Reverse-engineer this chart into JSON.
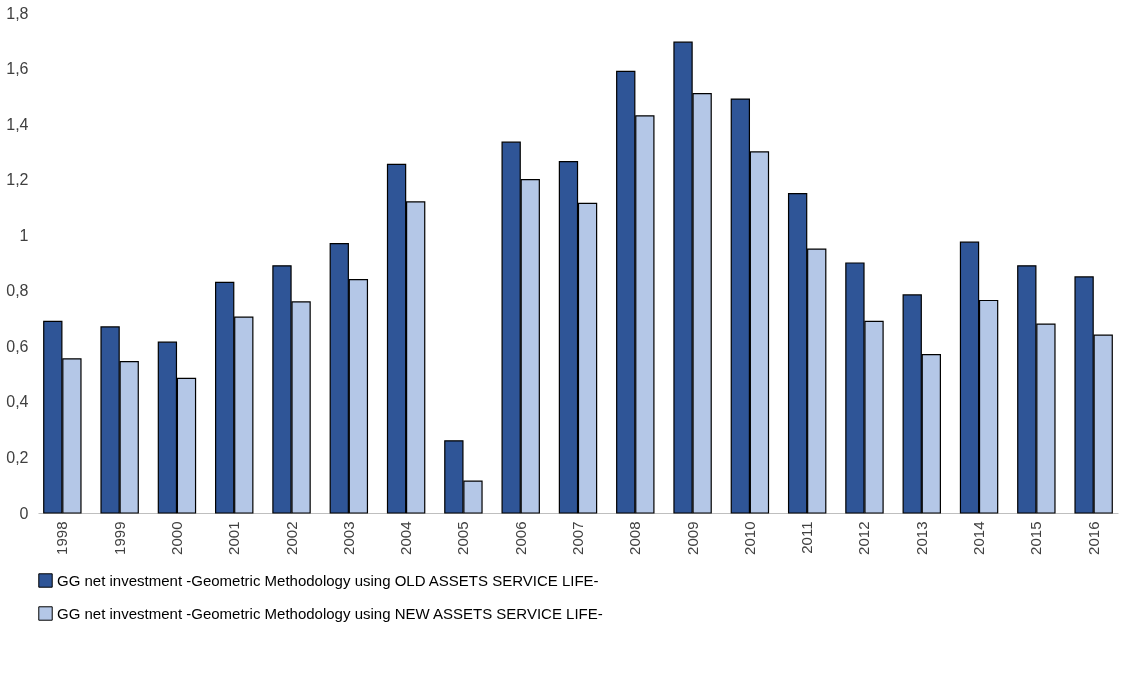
{
  "chart_data": {
    "type": "bar",
    "categories": [
      "1998",
      "1999",
      "2000",
      "2001",
      "2002",
      "2003",
      "2004",
      "2005",
      "2006",
      "2007",
      "2008",
      "2009",
      "2010",
      "2011",
      "2012",
      "2013",
      "2014",
      "2015",
      "2016"
    ],
    "series": [
      {
        "name": "GG net investment -Geometric Methodology using OLD ASSETS SERVICE LIFE-",
        "color": "#2f5597",
        "values": [
          0.69,
          0.67,
          0.615,
          0.83,
          0.89,
          0.97,
          1.255,
          0.26,
          1.335,
          1.265,
          1.59,
          1.695,
          1.49,
          1.15,
          0.9,
          0.785,
          0.975,
          0.89,
          0.85
        ]
      },
      {
        "name": "GG net investment -Geometric Methodology using NEW ASSETS SERVICE LIFE-",
        "color": "#b4c7e7",
        "values": [
          0.555,
          0.545,
          0.485,
          0.705,
          0.76,
          0.84,
          1.12,
          0.115,
          1.2,
          1.115,
          1.43,
          1.51,
          1.3,
          0.95,
          0.69,
          0.57,
          0.765,
          0.68,
          0.64
        ]
      }
    ],
    "ylim": [
      0,
      1.8
    ],
    "yticks": [
      0,
      {
        "value": 0.2,
        "label": "0,2"
      },
      {
        "value": 0.4,
        "label": "0,4"
      },
      {
        "value": 0.6,
        "label": "0,6"
      },
      {
        "value": 0.8,
        "label": "0,8"
      },
      1,
      {
        "value": 1.2,
        "label": "1,2"
      },
      {
        "value": 1.4,
        "label": "1,4"
      },
      {
        "value": 1.6,
        "label": "1,6"
      },
      {
        "value": 1.8,
        "label": "1,8"
      }
    ],
    "grid": false,
    "legend": "bottom"
  }
}
